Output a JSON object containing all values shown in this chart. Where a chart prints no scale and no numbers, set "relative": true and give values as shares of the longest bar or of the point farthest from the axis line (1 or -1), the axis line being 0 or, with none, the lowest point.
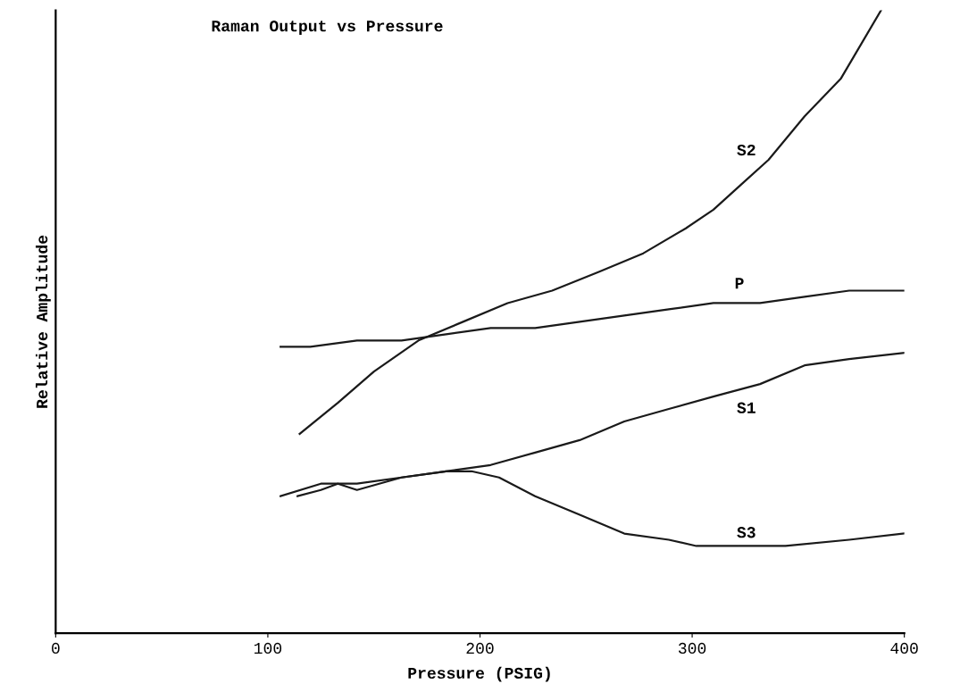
{
  "chart_data": {
    "type": "line",
    "title": "Raman Output vs Pressure",
    "xlabel": "Pressure (PSIG)",
    "ylabel": "Relative Amplitude",
    "relative": true,
    "xlim": [
      0,
      400
    ],
    "xticks": [
      0,
      100,
      200,
      300,
      400
    ],
    "grid": false,
    "legend": false,
    "marker": "none",
    "line_style": "solid",
    "series": [
      {
        "name": "S2",
        "color": "#1a1a1a",
        "x": [
          115,
          133,
          150,
          171,
          192,
          213,
          234,
          256,
          277,
          297,
          310,
          323,
          336,
          353,
          370,
          389
        ],
        "values": [
          0.32,
          0.37,
          0.42,
          0.47,
          0.5,
          0.53,
          0.55,
          0.58,
          0.61,
          0.65,
          0.68,
          0.72,
          0.76,
          0.83,
          0.89,
          1.0
        ]
      },
      {
        "name": "P",
        "color": "#1a1a1a",
        "x": [
          106,
          114,
          120,
          142,
          163,
          184,
          205,
          226,
          247,
          268,
          289,
          310,
          332,
          353,
          374,
          400
        ],
        "values": [
          0.46,
          0.46,
          0.46,
          0.47,
          0.47,
          0.48,
          0.49,
          0.49,
          0.5,
          0.51,
          0.52,
          0.53,
          0.53,
          0.54,
          0.55,
          0.55
        ]
      },
      {
        "name": "S1",
        "color": "#1a1a1a",
        "x": [
          106,
          125,
          142,
          163,
          184,
          205,
          226,
          247,
          268,
          289,
          310,
          332,
          353,
          374,
          400
        ],
        "values": [
          0.22,
          0.24,
          0.24,
          0.25,
          0.26,
          0.27,
          0.29,
          0.31,
          0.34,
          0.36,
          0.38,
          0.4,
          0.43,
          0.44,
          0.45
        ]
      },
      {
        "name": "S3",
        "color": "#1a1a1a",
        "x": [
          114,
          125,
          133,
          142,
          163,
          184,
          196,
          209,
          226,
          247,
          268,
          289,
          302,
          319,
          344,
          374,
          400
        ],
        "values": [
          0.22,
          0.23,
          0.24,
          0.23,
          0.25,
          0.26,
          0.26,
          0.25,
          0.22,
          0.19,
          0.16,
          0.15,
          0.14,
          0.14,
          0.14,
          0.15,
          0.16
        ]
      }
    ]
  }
}
